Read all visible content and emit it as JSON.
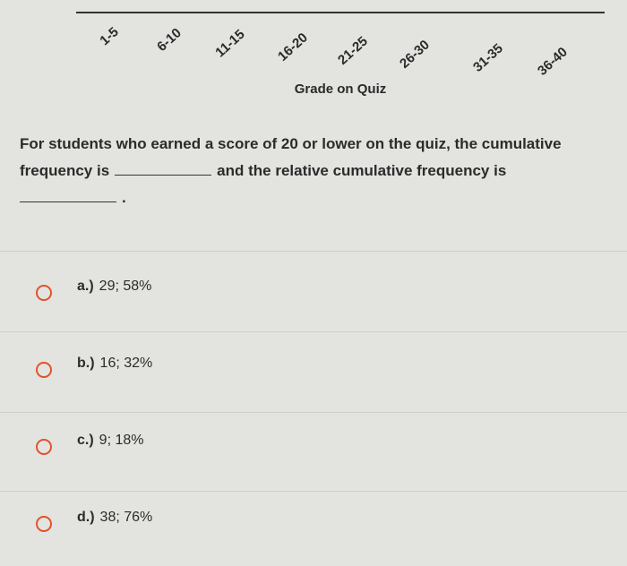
{
  "axis": {
    "categories": [
      "1-5",
      "6-10",
      "11-15",
      "16-20",
      "21-25",
      "26-30",
      "31-35",
      "36-40"
    ],
    "title": "Grade on Quiz"
  },
  "question": {
    "before": "For students who earned a score of 20 or lower on the quiz, the cumulative frequency is",
    "middle": "and the relative cumulative frequency is",
    "end": "."
  },
  "options": [
    {
      "letter": "a.)",
      "text": "29; 58%"
    },
    {
      "letter": "b.)",
      "text": "16; 32%"
    },
    {
      "letter": "c.)",
      "text": "9; 18%"
    },
    {
      "letter": "d.)",
      "text": "38; 76%"
    }
  ]
}
